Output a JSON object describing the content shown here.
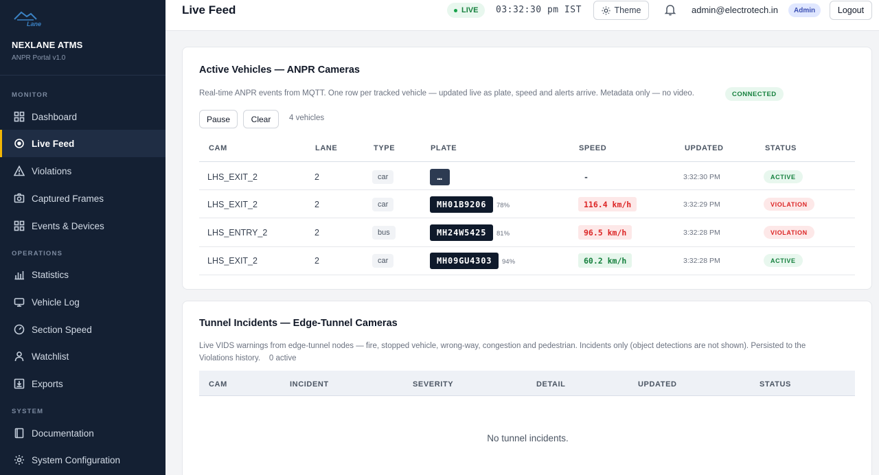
{
  "sidebar": {
    "brand_name": "NEXLANE ATMS",
    "brand_sub": "ANPR Portal v1.0",
    "logo_text": "Lane",
    "sections": {
      "monitor": "MONITOR",
      "operations": "OPERATIONS",
      "system": "SYSTEM"
    },
    "items": [
      {
        "label": "Dashboard",
        "icon": "grid-icon",
        "active": false
      },
      {
        "label": "Live Feed",
        "icon": "live-dot-icon",
        "active": true
      },
      {
        "label": "Violations",
        "icon": "warning-icon",
        "active": false
      },
      {
        "label": "Captured Frames",
        "icon": "camera-icon",
        "active": false
      },
      {
        "label": "Events & Devices",
        "icon": "grid-icon",
        "active": false
      },
      {
        "label": "Statistics",
        "icon": "bar-chart-icon",
        "active": false
      },
      {
        "label": "Vehicle Log",
        "icon": "car-icon",
        "active": false
      },
      {
        "label": "Section Speed",
        "icon": "gauge-icon",
        "active": false
      },
      {
        "label": "Watchlist",
        "icon": "user-icon",
        "active": false
      },
      {
        "label": "Exports",
        "icon": "download-icon",
        "active": false
      },
      {
        "label": "Documentation",
        "icon": "book-icon",
        "active": false
      },
      {
        "label": "System Configuration",
        "icon": "gear-icon",
        "active": false
      }
    ]
  },
  "header": {
    "title": "Live Feed",
    "live_label": "LIVE",
    "clock": "03:32:30 pm IST",
    "theme_label": "Theme",
    "user_email": "admin@electrotech.in",
    "role": "Admin",
    "logout_label": "Logout"
  },
  "active_vehicles": {
    "title": "Active Vehicles — ANPR Cameras",
    "description": "Real-time ANPR events from MQTT. One row per tracked vehicle — updated live as plate, speed and alerts arrive. Metadata only — no video.",
    "connection_status": "CONNECTED",
    "pause_label": "Pause",
    "clear_label": "Clear",
    "count_text": "4 vehicles",
    "columns": [
      "CAM",
      "LANE",
      "TYPE",
      "PLATE",
      "SPEED",
      "UPDATED",
      "STATUS"
    ],
    "rows": [
      {
        "cam": "LHS_EXIT_2",
        "lane": "2",
        "type": "car",
        "plate": "…",
        "confidence": "",
        "speed": "-",
        "speed_state": "none",
        "updated": "3:32:30 PM",
        "status": "ACTIVE"
      },
      {
        "cam": "LHS_EXIT_2",
        "lane": "2",
        "type": "car",
        "plate": "MH01B9206",
        "confidence": "78%",
        "speed": "116.4 km/h",
        "speed_state": "red",
        "updated": "3:32:29 PM",
        "status": "VIOLATION"
      },
      {
        "cam": "LHS_ENTRY_2",
        "lane": "2",
        "type": "bus",
        "plate": "MH24W5425",
        "confidence": "81%",
        "speed": "96.5 km/h",
        "speed_state": "red",
        "updated": "3:32:28 PM",
        "status": "VIOLATION"
      },
      {
        "cam": "LHS_EXIT_2",
        "lane": "2",
        "type": "car",
        "plate": "MH09GU4303",
        "confidence": "94%",
        "speed": "60.2 km/h",
        "speed_state": "green",
        "updated": "3:32:28 PM",
        "status": "ACTIVE"
      }
    ]
  },
  "tunnel_incidents": {
    "title": "Tunnel Incidents — Edge-Tunnel Cameras",
    "description_line1": "Live VIDS warnings from edge-tunnel nodes — fire, stopped vehicle, wrong-way, congestion and pedestrian. Incidents only (object detections are not shown). Persisted to the",
    "description_line2": "Violations history.",
    "active_count": "0 active",
    "columns": [
      "CAM",
      "INCIDENT",
      "SEVERITY",
      "DETAIL",
      "UPDATED",
      "STATUS"
    ],
    "empty_text": "No tunnel incidents."
  },
  "colors": {
    "sidebar_bg": "#142033",
    "active_accent": "#f2b705",
    "success": "#15803d",
    "danger": "#dc2626",
    "plate_bg": "#0f1a2b"
  }
}
